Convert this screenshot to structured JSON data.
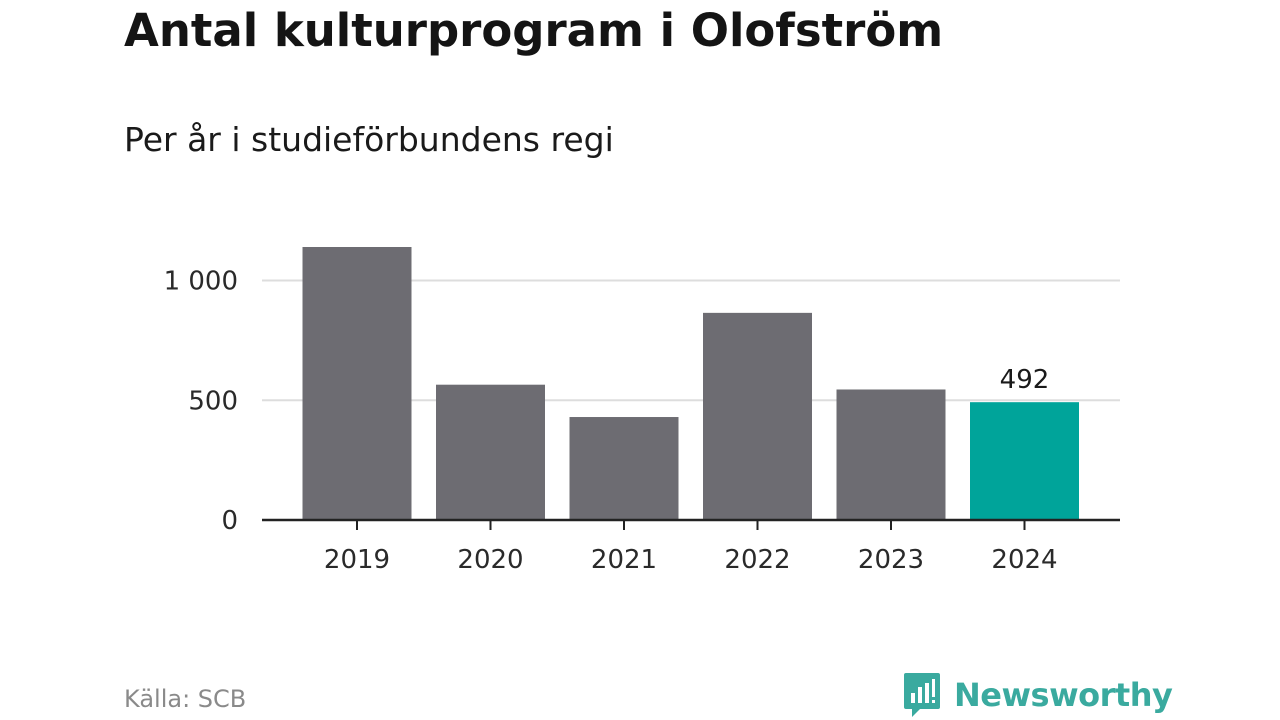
{
  "title": "Antal kulturprogram i Olofström",
  "subtitle": "Per år i studieförbundens regi",
  "source": "Källa: SCB",
  "brand": {
    "name": "Newsworthy",
    "icon": "newsworthy-logo-icon",
    "color": "#3aaa9f"
  },
  "colors": {
    "bar": "#6d6c72",
    "highlight": "#00a49a",
    "grid": "#dddddd",
    "axis": "#222222",
    "text": "#1a1a1a"
  },
  "chart_data": {
    "type": "bar",
    "categories": [
      "2019",
      "2020",
      "2021",
      "2022",
      "2023",
      "2024"
    ],
    "values": [
      1140,
      565,
      430,
      865,
      545,
      492
    ],
    "highlight_index": 5,
    "data_labels": [
      {
        "index": 5,
        "text": "492"
      }
    ],
    "yticks": [
      0,
      500,
      1000
    ],
    "ytick_labels": [
      "0",
      "500",
      "1 000"
    ],
    "ylim": [
      0,
      1140
    ],
    "grid": true,
    "xlabel": "",
    "ylabel": ""
  }
}
